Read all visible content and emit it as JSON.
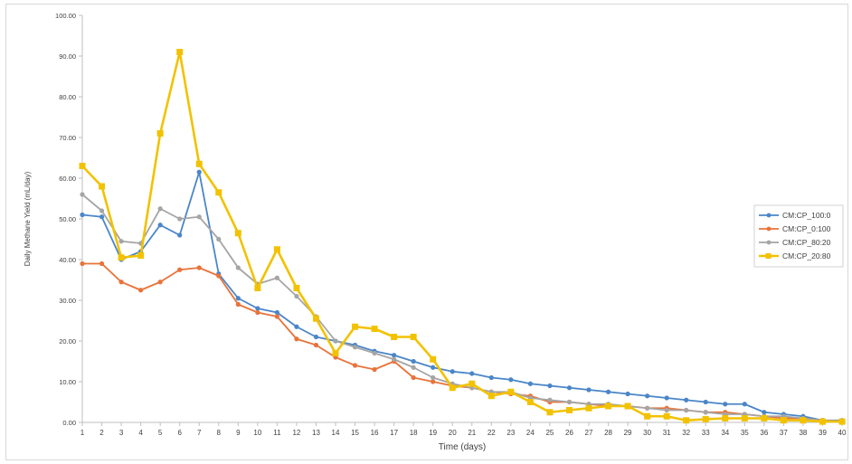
{
  "chart_data": {
    "type": "line",
    "xlabel": "Time (days)",
    "ylabel": "Daily Methane Yield (mL/day)",
    "ylim": [
      0,
      100
    ],
    "yticks": [
      "0.00",
      "10.00",
      "20.00",
      "30.00",
      "40.00",
      "50.00",
      "60.00",
      "70.00",
      "80.00",
      "90.00",
      "100.00"
    ],
    "categories": [
      "1",
      "2",
      "3",
      "4",
      "5",
      "6",
      "7",
      "8",
      "9",
      "10",
      "11",
      "12",
      "13",
      "14",
      "15",
      "16",
      "17",
      "18",
      "19",
      "20",
      "21",
      "22",
      "23",
      "24",
      "25",
      "26",
      "27",
      "28",
      "29",
      "30",
      "31",
      "32",
      "33",
      "34",
      "35",
      "36",
      "37",
      "38",
      "39",
      "40"
    ],
    "grid": false,
    "legend": "right",
    "series": [
      {
        "name": "CM:CP_100:0",
        "color": "#4a86c8",
        "values": [
          51.0,
          50.5,
          40.0,
          42.0,
          48.5,
          46.0,
          61.5,
          36.5,
          30.5,
          28.0,
          27.0,
          23.5,
          21.0,
          20.0,
          19.0,
          17.5,
          16.5,
          15.0,
          13.5,
          12.5,
          12.0,
          11.0,
          10.5,
          9.5,
          9.0,
          8.5,
          8.0,
          7.5,
          7.0,
          6.5,
          6.0,
          5.5,
          5.0,
          4.5,
          4.5,
          2.5,
          2.0,
          1.5,
          0.5,
          0.5
        ]
      },
      {
        "name": "CM:CP_0:100",
        "color": "#e8733a",
        "values": [
          39.0,
          39.0,
          34.5,
          32.5,
          34.5,
          37.5,
          38.0,
          36.0,
          29.0,
          27.0,
          26.0,
          20.5,
          19.0,
          16.0,
          14.0,
          13.0,
          15.0,
          11.0,
          10.0,
          9.0,
          8.5,
          7.5,
          7.0,
          6.5,
          5.0,
          5.0,
          4.5,
          4.0,
          4.0,
          3.5,
          3.5,
          3.0,
          2.5,
          2.5,
          2.0,
          1.5,
          1.0,
          1.0,
          0.5,
          0.3
        ]
      },
      {
        "name": "CM:CP_80:20",
        "color": "#a5a5a5",
        "values": [
          56.0,
          52.0,
          44.5,
          44.0,
          52.5,
          50.0,
          50.5,
          45.0,
          38.0,
          34.0,
          35.5,
          31.0,
          26.0,
          20.0,
          18.5,
          17.0,
          15.5,
          13.5,
          11.0,
          9.5,
          8.5,
          7.5,
          7.5,
          6.0,
          5.5,
          5.0,
          4.5,
          4.5,
          4.0,
          3.5,
          3.0,
          3.0,
          2.5,
          2.0,
          2.0,
          1.5,
          1.5,
          1.0,
          0.5,
          0.3
        ]
      },
      {
        "name": "CM:CP_20:80",
        "color": "#f2c200",
        "values": [
          63.0,
          58.0,
          40.5,
          41.0,
          71.0,
          91.0,
          63.5,
          56.5,
          46.5,
          33.0,
          42.5,
          33.0,
          25.5,
          17.0,
          23.5,
          23.0,
          21.0,
          21.0,
          15.5,
          8.5,
          9.5,
          6.5,
          7.5,
          5.0,
          2.5,
          3.0,
          3.5,
          4.0,
          4.0,
          1.5,
          1.5,
          0.5,
          0.8,
          1.0,
          1.0,
          1.0,
          0.5,
          0.5,
          0.2,
          0.2
        ]
      }
    ]
  }
}
